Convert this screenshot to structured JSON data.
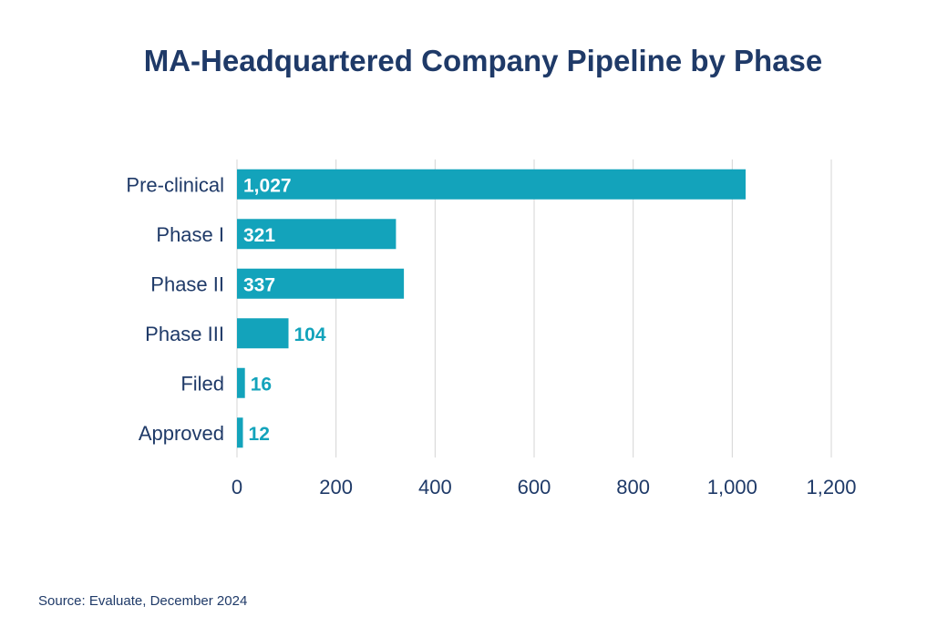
{
  "chart_data": {
    "type": "bar",
    "orientation": "horizontal",
    "title": "MA-Headquartered Company Pipeline by Phase",
    "categories": [
      "Pre-clinical",
      "Phase I",
      "Phase II",
      "Phase III",
      "Filed",
      "Approved"
    ],
    "values": [
      1027,
      321,
      337,
      104,
      16,
      12
    ],
    "value_labels": [
      "1,027",
      "321",
      "337",
      "104",
      "16",
      "12"
    ],
    "xlim": [
      0,
      1200
    ],
    "xticks": [
      0,
      200,
      400,
      600,
      800,
      1000,
      1200
    ],
    "xtick_labels": [
      "0",
      "200",
      "400",
      "600",
      "800",
      "1,000",
      "1,200"
    ],
    "grid": "vertical",
    "bar_color": "#13a3bb",
    "text_color": "#1f3a68"
  },
  "source": "Source: Evaluate, December 2024"
}
